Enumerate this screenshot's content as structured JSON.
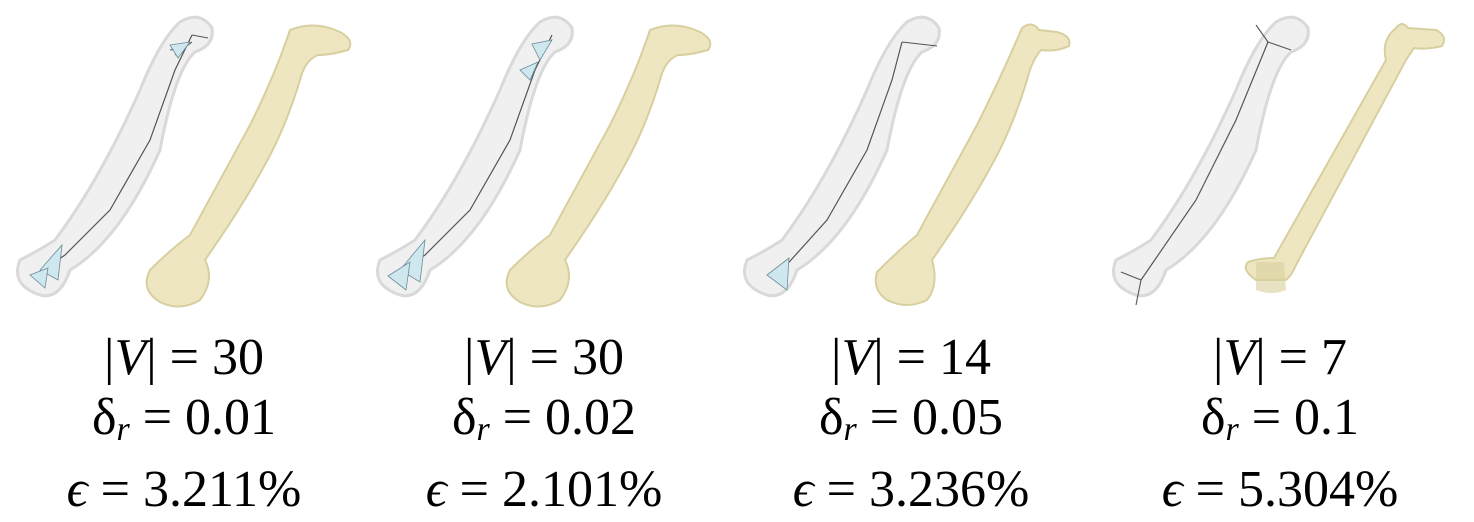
{
  "colors": {
    "bone_fill": "#ede6c1",
    "bone_shade": "#d8cf9f",
    "transparent_bone": "#ececec",
    "skeleton_line": "#555555",
    "triangle_fill": "#cfe8f0"
  },
  "panels": [
    {
      "v_count": "30",
      "delta_r": "0.01",
      "epsilon": "3.211%"
    },
    {
      "v_count": "30",
      "delta_r": "0.02",
      "epsilon": "2.101%"
    },
    {
      "v_count": "14",
      "delta_r": "0.05",
      "epsilon": "3.236%"
    },
    {
      "v_count": "7",
      "delta_r": "0.1",
      "epsilon": "5.304%"
    }
  ],
  "symbols": {
    "v_left": "|",
    "v_var": "V",
    "v_right": "|",
    "equals": "=",
    "delta": "δ",
    "delta_sub": "r",
    "epsilon": "ϵ"
  }
}
